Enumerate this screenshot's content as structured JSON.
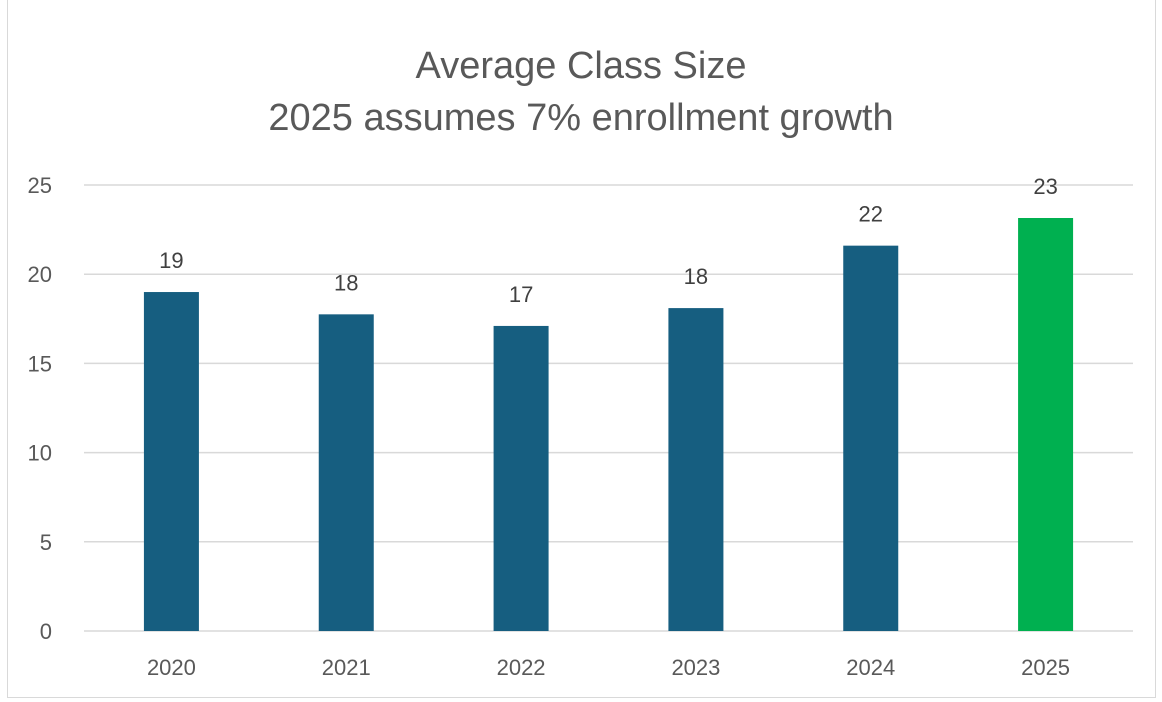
{
  "chart_data": {
    "type": "bar",
    "title": "Average Class Size",
    "subtitle": "2025 assumes 7% enrollment growth",
    "categories": [
      "2020",
      "2021",
      "2022",
      "2023",
      "2024",
      "2025"
    ],
    "values": [
      19.0,
      17.75,
      17.1,
      18.1,
      21.6,
      23.15
    ],
    "data_labels": [
      "19",
      "18",
      "17",
      "18",
      "22",
      "23"
    ],
    "bar_colors": [
      "#165e80",
      "#165e80",
      "#165e80",
      "#165e80",
      "#165e80",
      "#00b050"
    ],
    "ylim": [
      0,
      25
    ],
    "yticks": [
      0,
      5,
      10,
      15,
      20,
      25
    ],
    "grid": true,
    "legend": "none"
  },
  "colors": {
    "bar": "#165e80",
    "highlight_bar": "#00b050",
    "gridline": "#d9d9d9",
    "text": "#595959"
  }
}
